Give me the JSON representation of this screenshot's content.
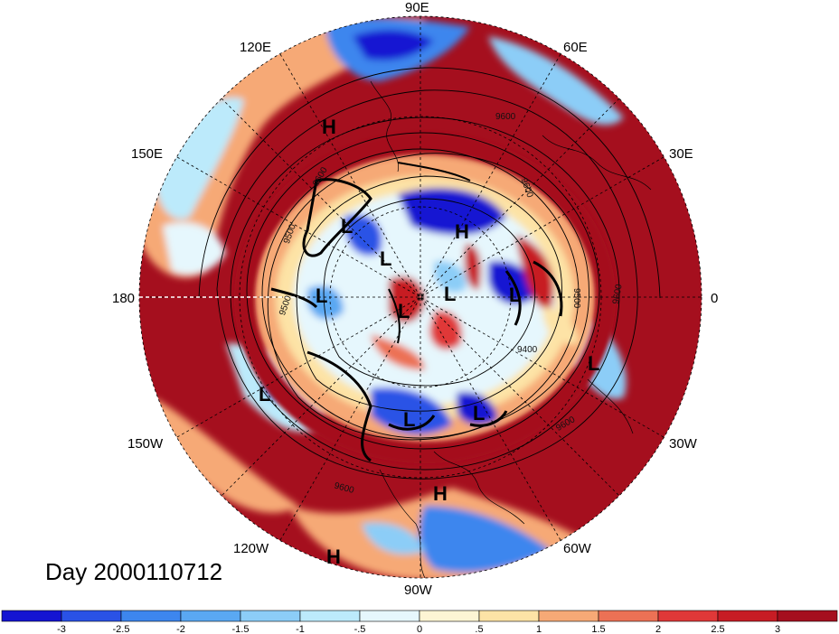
{
  "title": "Day 2000110712",
  "longitude_labels": [
    {
      "text": "90E",
      "name": "lon-label-90e"
    },
    {
      "text": "60E",
      "name": "lon-label-60e"
    },
    {
      "text": "120E",
      "name": "lon-label-120e"
    },
    {
      "text": "30E",
      "name": "lon-label-30e"
    },
    {
      "text": "150E",
      "name": "lon-label-150e"
    },
    {
      "text": "0",
      "name": "lon-label-0"
    },
    {
      "text": "180",
      "name": "lon-label-180"
    },
    {
      "text": "30W",
      "name": "lon-label-30w"
    },
    {
      "text": "150W",
      "name": "lon-label-150w"
    },
    {
      "text": "60W",
      "name": "lon-label-60w"
    },
    {
      "text": "120W",
      "name": "lon-label-120w"
    },
    {
      "text": "90W",
      "name": "lon-label-90w"
    }
  ],
  "pressure_centers": [
    "H",
    "H",
    "H",
    "H",
    "L",
    "L",
    "L",
    "L",
    "L",
    "L",
    "L",
    "L",
    "L",
    "L"
  ],
  "contour_labels": [
    "9600",
    "9600",
    "9500",
    "9600",
    "9500",
    "9600",
    "9400",
    "9600",
    "9600",
    "9500"
  ],
  "colorbar": {
    "ticks": [
      "-3",
      "-2.5",
      "-2",
      "-1.5",
      "-1",
      "-.5",
      "0",
      ".5",
      "1",
      "1.5",
      "2",
      "2.5",
      "3"
    ],
    "colors": [
      "#1414d2",
      "#2a52e6",
      "#3d86ee",
      "#5aa8f2",
      "#8ccdf7",
      "#bceafb",
      "#e6f7fd",
      "#fdf5d4",
      "#fde3a6",
      "#f6a976",
      "#ec7155",
      "#e03838",
      "#c71c24",
      "#a50f1e"
    ]
  }
}
